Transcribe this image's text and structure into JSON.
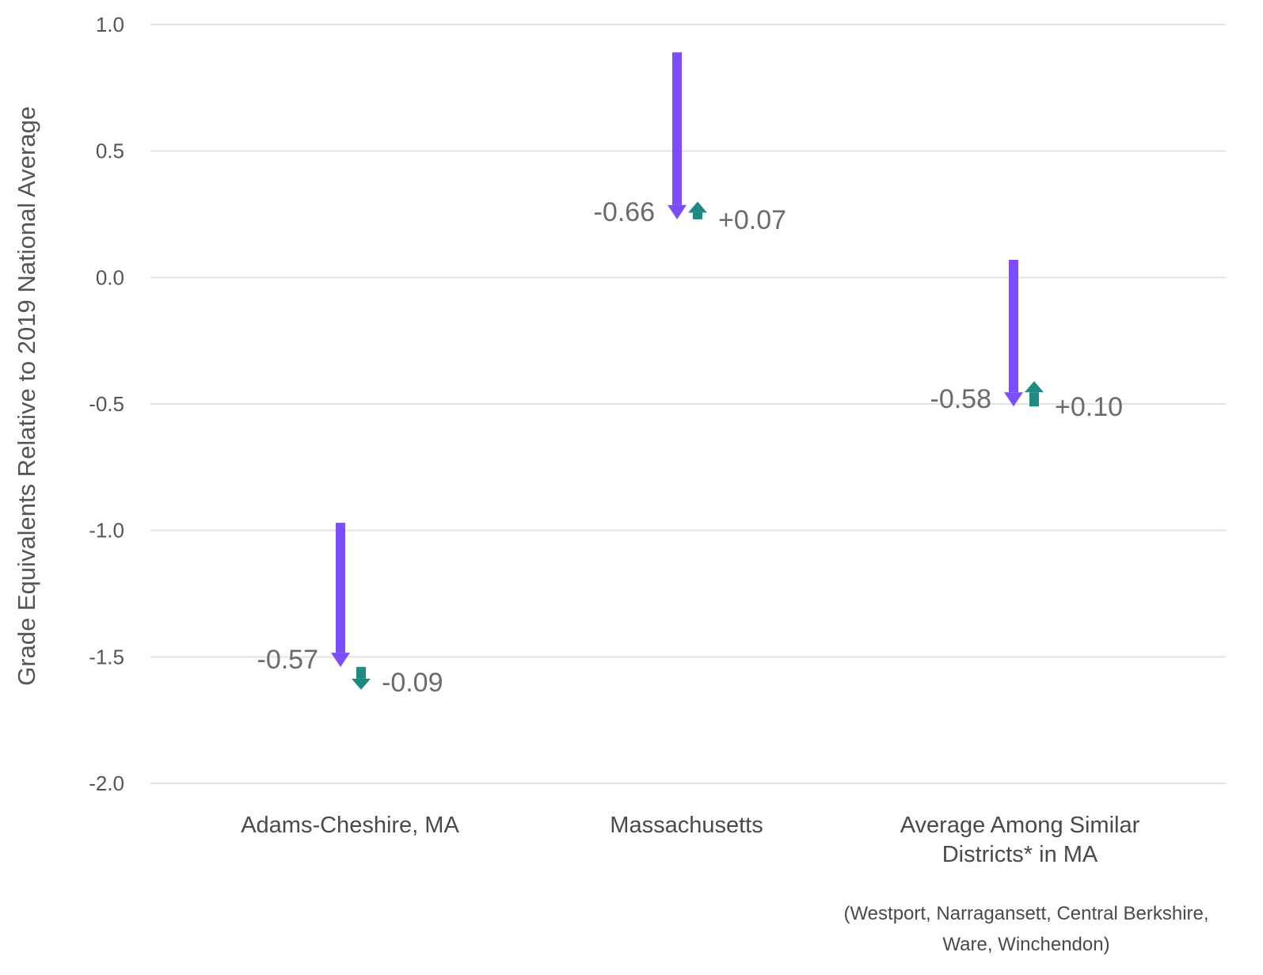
{
  "chart_data": {
    "type": "arrow",
    "ylabel": "Grade Equivalents Relative to 2019 National Average",
    "ylim": [
      -2.0,
      1.0
    ],
    "yticks": [
      {
        "value": 1.0,
        "label": "1.0"
      },
      {
        "value": 0.5,
        "label": "0.5"
      },
      {
        "value": 0.0,
        "label": "0.0"
      },
      {
        "value": -0.5,
        "label": "-0.5"
      },
      {
        "value": -1.0,
        "label": "-1.0"
      },
      {
        "value": -1.5,
        "label": "-1.5"
      },
      {
        "value": -2.0,
        "label": "-2.0"
      }
    ],
    "grid": true,
    "colors": {
      "decline": "#7c4dff",
      "recovery": "#1e8a82",
      "grid": "#e3e3e3"
    },
    "groups": [
      {
        "category": [
          "Adams-Cheshire, MA"
        ],
        "start": -0.97,
        "decline": -0.57,
        "decline_label": "-0.57",
        "recovery": -0.09,
        "recovery_label": "-0.09"
      },
      {
        "category": [
          "Massachusetts"
        ],
        "start": 0.89,
        "decline": -0.66,
        "decline_label": "-0.66",
        "recovery": 0.07,
        "recovery_label": "+0.07"
      },
      {
        "category": [
          "Average Among Similar",
          "Districts* in MA"
        ],
        "start": 0.07,
        "decline": -0.58,
        "decline_label": "-0.58",
        "recovery": 0.1,
        "recovery_label": "+0.10"
      }
    ],
    "footnote": [
      "(Westport, Narragansett, Central Berkshire,",
      "Ware, Winchendon)"
    ]
  }
}
